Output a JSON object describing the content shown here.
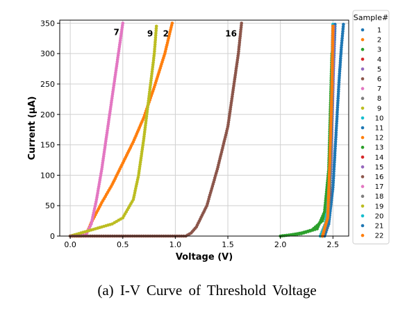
{
  "chart_data": {
    "type": "scatter",
    "xlabel": "Voltage (V)",
    "ylabel": "Current (μA)",
    "xlim": [
      -0.1,
      2.65
    ],
    "ylim": [
      0,
      355
    ],
    "xticks": [
      0.0,
      0.5,
      1.0,
      1.5,
      2.0,
      2.5
    ],
    "xtick_labels": [
      "0.0",
      "0.5",
      "1.0",
      "1.5",
      "2.0",
      "2.5"
    ],
    "yticks": [
      0,
      50,
      100,
      150,
      200,
      250,
      300,
      350
    ],
    "ytick_labels": [
      "0",
      "50",
      "100",
      "150",
      "200",
      "250",
      "300",
      "350"
    ],
    "grid": true,
    "legend": {
      "title": "Sample#",
      "placement": "outside-right"
    },
    "series": [
      {
        "name": "1",
        "color": "#1f77b4",
        "x": [
          2.42,
          2.46,
          2.5,
          2.52,
          2.54,
          2.56,
          2.58,
          2.6
        ],
        "y": [
          0,
          20,
          80,
          140,
          200,
          260,
          310,
          348
        ]
      },
      {
        "name": "2",
        "color": "#ff7f0e",
        "x": [
          0.0,
          0.1,
          0.15,
          0.2,
          0.3,
          0.4,
          0.5,
          0.6,
          0.7,
          0.8,
          0.9,
          0.97
        ],
        "y": [
          0,
          0,
          2,
          22,
          55,
          85,
          120,
          155,
          195,
          245,
          300,
          350
        ]
      },
      {
        "name": "3",
        "color": "#2ca02c",
        "x": [
          2.1,
          2.2,
          2.3,
          2.4,
          2.45,
          2.48,
          2.5
        ],
        "y": [
          2,
          5,
          10,
          25,
          60,
          150,
          300
        ]
      },
      {
        "name": "4",
        "color": "#d62728",
        "x": [
          2.4,
          2.44,
          2.46,
          2.48,
          2.5
        ],
        "y": [
          0,
          15,
          60,
          180,
          340
        ]
      },
      {
        "name": "5",
        "color": "#9467bd",
        "x": [
          2.4,
          2.45,
          2.47,
          2.49,
          2.51
        ],
        "y": [
          0,
          20,
          90,
          200,
          345
        ]
      },
      {
        "name": "6",
        "color": "#8c564b",
        "x": [
          2.38,
          2.44,
          2.47,
          2.49,
          2.5
        ],
        "y": [
          0,
          25,
          110,
          230,
          345
        ]
      },
      {
        "name": "7",
        "color": "#e377c2",
        "x": [
          0.0,
          0.15,
          0.2,
          0.25,
          0.3,
          0.35,
          0.4,
          0.45,
          0.5
        ],
        "y": [
          0,
          2,
          20,
          60,
          110,
          170,
          230,
          290,
          350
        ]
      },
      {
        "name": "8",
        "color": "#7f7f7f",
        "x": [
          2.4,
          2.44,
          2.47,
          2.49,
          2.5
        ],
        "y": [
          0,
          15,
          80,
          210,
          345
        ]
      },
      {
        "name": "9",
        "color": "#bcbd22",
        "x": [
          0.0,
          0.2,
          0.4,
          0.5,
          0.6,
          0.65,
          0.7,
          0.75,
          0.8,
          0.82
        ],
        "y": [
          0,
          10,
          20,
          30,
          60,
          100,
          160,
          230,
          300,
          345
        ]
      },
      {
        "name": "10",
        "color": "#17becf",
        "x": [
          2.38,
          2.43,
          2.46,
          2.48,
          2.5
        ],
        "y": [
          0,
          20,
          90,
          220,
          348
        ]
      },
      {
        "name": "11",
        "color": "#1f77b4",
        "x": [
          2.4,
          2.45,
          2.48,
          2.5,
          2.52
        ],
        "y": [
          0,
          25,
          120,
          250,
          348
        ]
      },
      {
        "name": "12",
        "color": "#ff7f0e",
        "x": [
          2.4,
          2.45,
          2.47,
          2.49,
          2.5
        ],
        "y": [
          0,
          20,
          100,
          220,
          345
        ]
      },
      {
        "name": "13",
        "color": "#2ca02c",
        "x": [
          2.0,
          2.2,
          2.35,
          2.42,
          2.46,
          2.49
        ],
        "y": [
          0,
          4,
          12,
          40,
          110,
          300
        ]
      },
      {
        "name": "14",
        "color": "#d62728",
        "x": [
          2.4,
          2.44,
          2.47,
          2.49,
          2.5
        ],
        "y": [
          0,
          15,
          70,
          190,
          340
        ]
      },
      {
        "name": "15",
        "color": "#9467bd",
        "x": [
          2.4,
          2.45,
          2.48,
          2.5,
          2.51
        ],
        "y": [
          0,
          25,
          110,
          240,
          345
        ]
      },
      {
        "name": "16",
        "color": "#8c564b",
        "x": [
          0.0,
          1.1,
          1.15,
          1.2,
          1.3,
          1.4,
          1.5,
          1.55,
          1.6,
          1.63
        ],
        "y": [
          0,
          0,
          5,
          15,
          50,
          110,
          180,
          240,
          300,
          350
        ]
      },
      {
        "name": "17",
        "color": "#e377c2",
        "x": [
          2.4,
          2.44,
          2.47,
          2.49,
          2.5
        ],
        "y": [
          0,
          20,
          90,
          210,
          345
        ]
      },
      {
        "name": "18",
        "color": "#7f7f7f",
        "x": [
          2.4,
          2.45,
          2.48,
          2.5
        ],
        "y": [
          0,
          30,
          150,
          340
        ]
      },
      {
        "name": "19",
        "color": "#bcbd22",
        "x": [
          2.4,
          2.45,
          2.47,
          2.49,
          2.5
        ],
        "y": [
          0,
          20,
          90,
          220,
          345
        ]
      },
      {
        "name": "20",
        "color": "#17becf",
        "x": [
          2.4,
          2.44,
          2.47,
          2.49,
          2.5
        ],
        "y": [
          0,
          20,
          100,
          230,
          345
        ]
      },
      {
        "name": "21",
        "color": "#1f77b4",
        "x": [
          2.4,
          2.45,
          2.47,
          2.49,
          2.5
        ],
        "y": [
          0,
          20,
          95,
          215,
          345
        ]
      },
      {
        "name": "22",
        "color": "#ff7f0e",
        "x": [
          2.4,
          2.45,
          2.47,
          2.49,
          2.5
        ],
        "y": [
          0,
          30,
          120,
          240,
          345
        ]
      }
    ],
    "annotations": [
      {
        "text": "7",
        "x": 0.44,
        "y": 335
      },
      {
        "text": "9",
        "x": 0.76,
        "y": 333
      },
      {
        "text": "2",
        "x": 0.91,
        "y": 333
      },
      {
        "text": "16",
        "x": 1.53,
        "y": 333
      }
    ]
  },
  "caption": "(a) I-V Curve of Threshold Voltage"
}
